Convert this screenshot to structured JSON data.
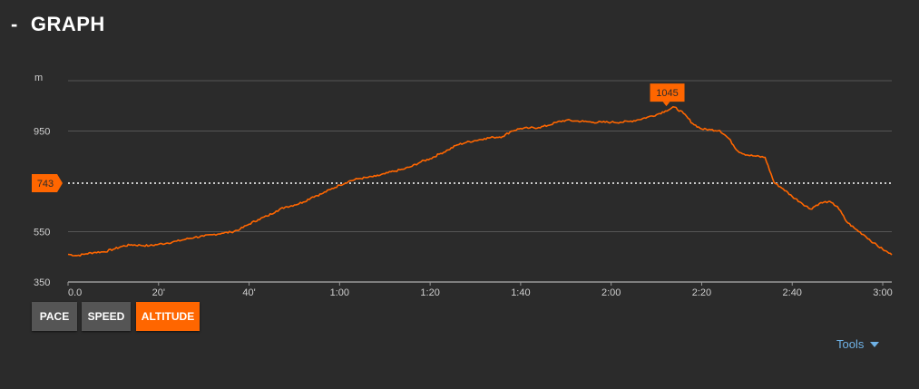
{
  "header": {
    "toggle": "-",
    "title": "GRAPH"
  },
  "buttons": [
    {
      "label": "PACE",
      "active": false
    },
    {
      "label": "SPEED",
      "active": false
    },
    {
      "label": "ALTITUDE",
      "active": true
    }
  ],
  "tools": {
    "label": "Tools"
  },
  "colors": {
    "background": "#2b2b2b",
    "line": "#ff6600",
    "grid": "#555555",
    "axis": "#9a9a9a",
    "marker": "#ff6600",
    "tools": "#6fb2e6"
  },
  "chart_data": {
    "type": "line",
    "title": "",
    "xlabel": "",
    "ylabel": "m",
    "x_unit": "minutes",
    "xlim": [
      0,
      182
    ],
    "ylim": [
      350,
      1150
    ],
    "y_ticks": [
      {
        "value": 350,
        "label": "350"
      },
      {
        "value": 550,
        "label": "550"
      },
      {
        "value": 950,
        "label": "950"
      }
    ],
    "x_ticks": [
      {
        "value": 0,
        "label": "0.0"
      },
      {
        "value": 20,
        "label": "20'"
      },
      {
        "value": 40,
        "label": "40'"
      },
      {
        "value": 60,
        "label": "1:00"
      },
      {
        "value": 80,
        "label": "1:20"
      },
      {
        "value": 100,
        "label": "1:40"
      },
      {
        "value": 120,
        "label": "2:00"
      },
      {
        "value": 140,
        "label": "2:20"
      },
      {
        "value": 160,
        "label": "2:40"
      },
      {
        "value": 180,
        "label": "3:00"
      }
    ],
    "grid": true,
    "reference_line": {
      "value": 743,
      "label": "743",
      "style": "dotted"
    },
    "max_marker": {
      "x": 134,
      "value": 1045,
      "label": "1045"
    },
    "series": [
      {
        "points": [
          [
            0,
            460
          ],
          [
            2,
            455
          ],
          [
            4,
            462
          ],
          [
            6,
            468
          ],
          [
            8,
            470
          ],
          [
            10,
            480
          ],
          [
            12,
            492
          ],
          [
            14,
            498
          ],
          [
            16,
            496
          ],
          [
            18,
            494
          ],
          [
            20,
            500
          ],
          [
            22,
            505
          ],
          [
            24,
            512
          ],
          [
            26,
            520
          ],
          [
            28,
            528
          ],
          [
            30,
            532
          ],
          [
            32,
            538
          ],
          [
            34,
            544
          ],
          [
            36,
            548
          ],
          [
            38,
            560
          ],
          [
            40,
            580
          ],
          [
            42,
            598
          ],
          [
            44,
            612
          ],
          [
            46,
            632
          ],
          [
            48,
            648
          ],
          [
            50,
            656
          ],
          [
            52,
            668
          ],
          [
            54,
            688
          ],
          [
            56,
            700
          ],
          [
            58,
            718
          ],
          [
            60,
            735
          ],
          [
            62,
            750
          ],
          [
            64,
            760
          ],
          [
            66,
            765
          ],
          [
            68,
            770
          ],
          [
            70,
            780
          ],
          [
            72,
            790
          ],
          [
            74,
            798
          ],
          [
            76,
            810
          ],
          [
            78,
            828
          ],
          [
            80,
            840
          ],
          [
            82,
            858
          ],
          [
            84,
            875
          ],
          [
            86,
            895
          ],
          [
            88,
            905
          ],
          [
            90,
            912
          ],
          [
            92,
            920
          ],
          [
            94,
            925
          ],
          [
            96,
            928
          ],
          [
            98,
            950
          ],
          [
            100,
            960
          ],
          [
            102,
            962
          ],
          [
            104,
            964
          ],
          [
            106,
            972
          ],
          [
            108,
            985
          ],
          [
            110,
            993
          ],
          [
            112,
            990
          ],
          [
            114,
            988
          ],
          [
            116,
            985
          ],
          [
            118,
            985
          ],
          [
            120,
            985
          ],
          [
            122,
            985
          ],
          [
            124,
            988
          ],
          [
            126,
            995
          ],
          [
            128,
            1005
          ],
          [
            130,
            1015
          ],
          [
            132,
            1030
          ],
          [
            134,
            1045
          ],
          [
            136,
            1020
          ],
          [
            138,
            980
          ],
          [
            140,
            958
          ],
          [
            142,
            955
          ],
          [
            144,
            952
          ],
          [
            146,
            920
          ],
          [
            148,
            870
          ],
          [
            150,
            855
          ],
          [
            152,
            850
          ],
          [
            154,
            845
          ],
          [
            156,
            745
          ],
          [
            158,
            720
          ],
          [
            160,
            690
          ],
          [
            162,
            665
          ],
          [
            164,
            640
          ],
          [
            166,
            662
          ],
          [
            168,
            670
          ],
          [
            170,
            650
          ],
          [
            172,
            590
          ],
          [
            174,
            560
          ],
          [
            176,
            535
          ],
          [
            178,
            505
          ],
          [
            180,
            480
          ],
          [
            182,
            458
          ]
        ]
      }
    ]
  }
}
